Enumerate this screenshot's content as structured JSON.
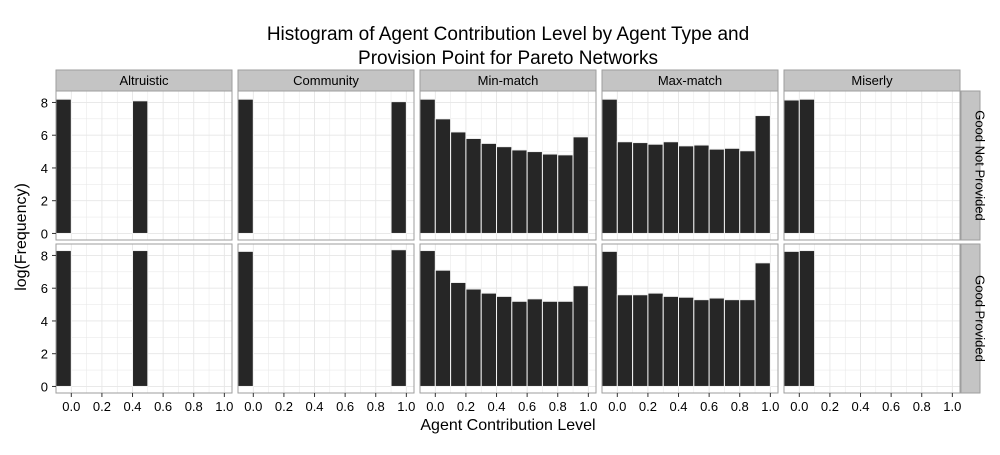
{
  "chart_data": {
    "type": "bar",
    "title_lines": [
      "Histogram of Agent Contribution Level by Agent Type and",
      "Provision Point for Pareto Networks"
    ],
    "xlabel": "Agent Contribution Level",
    "ylabel": "log(Frequency)",
    "xlim": [
      -0.1,
      1.05
    ],
    "ylim": [
      -0.4,
      8.7
    ],
    "x_ticks": [
      0.0,
      0.2,
      0.4,
      0.6,
      0.8,
      1.0
    ],
    "x_tick_labels": [
      "0.0",
      "0.2",
      "0.4",
      "0.6",
      "0.8",
      "1.0"
    ],
    "y_ticks": [
      0,
      2,
      4,
      6,
      8
    ],
    "y_tick_labels": [
      "0",
      "2",
      "4",
      "6",
      "8"
    ],
    "grid": true,
    "bin_width": 0.1,
    "columns": [
      "Altruistic",
      "Community",
      "Min-match",
      "Max-match",
      "Miserly"
    ],
    "rows": [
      "Good Not Provided",
      "Good Provided"
    ],
    "panels": [
      {
        "column": "Altruistic",
        "row": "Good Not Provided",
        "x": [
          -0.05,
          0.45
        ],
        "values": [
          8.2,
          8.1
        ]
      },
      {
        "column": "Community",
        "row": "Good Not Provided",
        "x": [
          -0.05,
          0.95
        ],
        "values": [
          8.2,
          8.05
        ]
      },
      {
        "column": "Min-match",
        "row": "Good Not Provided",
        "x": [
          -0.05,
          0.05,
          0.15,
          0.25,
          0.35,
          0.45,
          0.55,
          0.65,
          0.75,
          0.85,
          0.95
        ],
        "values": [
          8.2,
          7.0,
          6.2,
          5.8,
          5.5,
          5.3,
          5.1,
          5.0,
          4.85,
          4.8,
          5.9
        ]
      },
      {
        "column": "Max-match",
        "row": "Good Not Provided",
        "x": [
          -0.05,
          0.05,
          0.15,
          0.25,
          0.35,
          0.45,
          0.55,
          0.65,
          0.75,
          0.85,
          0.95
        ],
        "values": [
          8.2,
          5.6,
          5.55,
          5.45,
          5.6,
          5.35,
          5.4,
          5.15,
          5.2,
          5.05,
          7.2
        ]
      },
      {
        "column": "Miserly",
        "row": "Good Not Provided",
        "x": [
          -0.05,
          0.05
        ],
        "values": [
          8.15,
          8.2
        ]
      },
      {
        "column": "Altruistic",
        "row": "Good Provided",
        "x": [
          -0.05,
          0.45
        ],
        "values": [
          8.3,
          8.3
        ]
      },
      {
        "column": "Community",
        "row": "Good Provided",
        "x": [
          -0.05,
          0.95
        ],
        "values": [
          8.25,
          8.35
        ]
      },
      {
        "column": "Min-match",
        "row": "Good Provided",
        "x": [
          -0.05,
          0.05,
          0.15,
          0.25,
          0.35,
          0.45,
          0.55,
          0.65,
          0.75,
          0.85,
          0.95
        ],
        "values": [
          8.3,
          7.1,
          6.35,
          5.95,
          5.7,
          5.5,
          5.2,
          5.35,
          5.2,
          5.2,
          6.15
        ]
      },
      {
        "column": "Max-match",
        "row": "Good Provided",
        "x": [
          -0.05,
          0.05,
          0.15,
          0.25,
          0.35,
          0.45,
          0.55,
          0.65,
          0.75,
          0.85,
          0.95
        ],
        "values": [
          8.25,
          5.6,
          5.6,
          5.7,
          5.5,
          5.45,
          5.3,
          5.4,
          5.3,
          5.3,
          7.55
        ]
      },
      {
        "column": "Miserly",
        "row": "Good Provided",
        "x": [
          -0.05,
          0.05
        ],
        "values": [
          8.25,
          8.3
        ]
      }
    ],
    "colors": {
      "bar_fill": "#262626",
      "bar_stroke": "#f2f2f2",
      "grid": "#e6e6e6",
      "panel_border": "#9e9e9e",
      "strip_fill": "#c4c4c4",
      "text": "#000000"
    }
  }
}
